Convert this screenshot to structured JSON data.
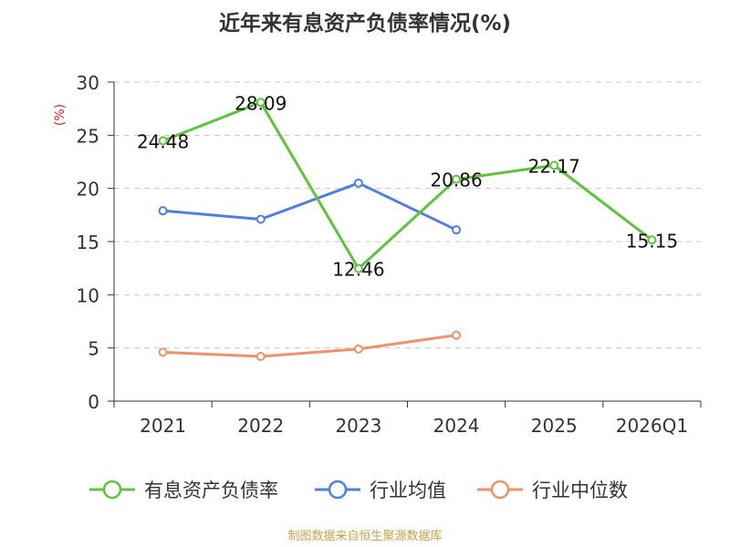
{
  "chart_data": {
    "type": "line",
    "title": "近年来有息资产负债率情况(%)",
    "ylabel": "(%)",
    "xlabel": "",
    "categories": [
      "2021",
      "2022",
      "2023",
      "2024",
      "2025",
      "2026Q1"
    ],
    "ylim": [
      0,
      30
    ],
    "yticks": [
      0,
      5,
      10,
      15,
      20,
      25,
      30
    ],
    "grid": true,
    "legend_position": "bottom",
    "series": [
      {
        "name": "有息资产负债率",
        "color": "#5cc53a",
        "values": [
          24.48,
          28.09,
          12.46,
          20.86,
          22.17,
          15.15
        ],
        "labels": [
          "24.48",
          "28.09",
          "12.46",
          "20.86",
          "22.17",
          "15.15"
        ]
      },
      {
        "name": "行业均值",
        "color": "#4f7fe0",
        "values": [
          17.9,
          17.1,
          20.5,
          16.1,
          null,
          null
        ]
      },
      {
        "name": "行业中位数",
        "color": "#f29066",
        "values": [
          4.6,
          4.2,
          4.9,
          6.2,
          null,
          null
        ]
      }
    ]
  },
  "source_note": "制图数据来自恒生聚源数据库"
}
